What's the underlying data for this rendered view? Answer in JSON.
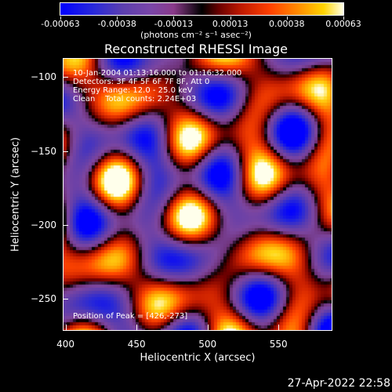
{
  "colorbar": {
    "labels": [
      "-0.00063",
      "-0.00038",
      "-0.00013",
      "0.00013",
      "0.00038",
      "0.00063"
    ],
    "unit": "(photons cm⁻² s⁻¹ asec⁻²)"
  },
  "chart_data": {
    "type": "heatmap",
    "title": "Reconstructed RHESSI Image",
    "xlabel": "Heliocentric X (arcsec)",
    "ylabel": "Heliocentric Y (arcsec)",
    "xlim": [
      398,
      588
    ],
    "ylim": [
      -272,
      -87
    ],
    "x_ticks": [
      "400",
      "450",
      "500",
      "550"
    ],
    "y_ticks": [
      "-100",
      "-150",
      "-200",
      "-250"
    ],
    "x_tick_values": [
      400,
      450,
      500,
      550
    ],
    "y_tick_values": [
      -100,
      -150,
      -200,
      -250
    ],
    "colorbar_range": [
      -0.00063,
      0.00063
    ],
    "peak": [
      426,
      -273
    ]
  },
  "annotations": {
    "line1": "10-Jan-2004 01:13:16.000 to 01:16:32.000",
    "line2": "Detectors: 3F 4F 5F 6F 7F 8F, Att 0",
    "line3": "Energy Range: 12.0 - 25.0 keV",
    "line4": "Clean    Total counts: 2.24E+03",
    "peak_text": "Position of Peak = [426,-273]"
  },
  "footer": {
    "date": "27-Apr-2022 22:58"
  }
}
